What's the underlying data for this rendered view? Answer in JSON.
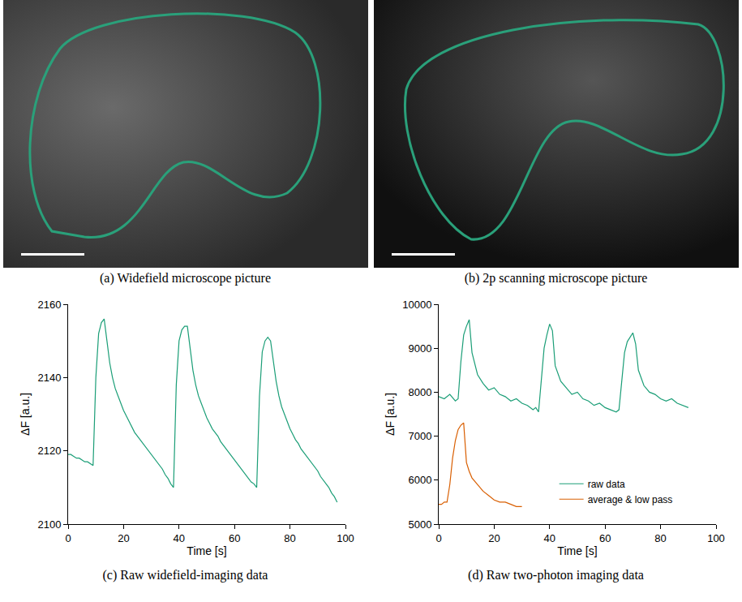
{
  "images": [
    {
      "caption": "(a) Widefield microscope picture"
    },
    {
      "caption": "(b) 2p scanning microscope picture"
    }
  ],
  "chart_data": [
    {
      "type": "line",
      "caption": "(c) Raw widefield-imaging data",
      "x_label": "Time [s]",
      "y_label": "ΔF [a.u.]",
      "xlim": [
        0,
        100
      ],
      "xticks": [
        0,
        20,
        40,
        60,
        80,
        100
      ],
      "ylim": [
        2100,
        2160
      ],
      "yticks": [
        2100,
        2120,
        2140,
        2160
      ],
      "grid": false,
      "series": [
        {
          "color": "#1b9e77",
          "x": [
            0,
            1,
            2,
            3,
            4,
            5,
            6,
            7,
            8,
            9,
            10,
            11,
            12,
            13,
            14,
            15,
            16,
            17,
            18,
            19,
            20,
            21,
            22,
            23,
            24,
            25,
            26,
            27,
            28,
            29,
            30,
            31,
            32,
            33,
            34,
            35,
            36,
            37,
            38,
            39,
            40,
            41,
            42,
            43,
            44,
            45,
            46,
            47,
            48,
            49,
            50,
            51,
            52,
            53,
            54,
            55,
            56,
            57,
            58,
            59,
            60,
            61,
            62,
            63,
            64,
            65,
            66,
            67,
            68,
            69,
            70,
            71,
            72,
            73,
            74,
            75,
            76,
            77,
            78,
            79,
            80,
            81,
            82,
            83,
            84,
            85,
            86,
            87,
            88,
            89,
            90,
            91,
            92,
            93,
            94,
            95,
            96,
            97
          ],
          "values": [
            2119,
            2119,
            2118.5,
            2118,
            2118,
            2117.5,
            2117,
            2117,
            2116.5,
            2116,
            2140,
            2152,
            2155,
            2156,
            2150,
            2144,
            2140,
            2137,
            2135,
            2133,
            2131,
            2129.5,
            2128,
            2126.5,
            2125,
            2124,
            2123,
            2122,
            2121,
            2120,
            2119,
            2118,
            2117,
            2116,
            2115,
            2113.5,
            2112.5,
            2111,
            2110,
            2138,
            2150,
            2153,
            2154,
            2154,
            2148,
            2142,
            2138,
            2135,
            2133,
            2131,
            2129,
            2127.5,
            2126,
            2125,
            2124,
            2122.5,
            2121.5,
            2120.5,
            2119.5,
            2118.5,
            2117.5,
            2116.5,
            2115.5,
            2114.5,
            2113.5,
            2112.5,
            2111.5,
            2111,
            2110,
            2135,
            2147,
            2150,
            2151,
            2150,
            2144,
            2139,
            2135,
            2132,
            2130,
            2128,
            2126,
            2124.5,
            2123,
            2122,
            2120.5,
            2119.5,
            2118.5,
            2117.5,
            2116.5,
            2115.5,
            2114.5,
            2113,
            2112,
            2111,
            2110,
            2108.5,
            2107.5,
            2106
          ]
        }
      ]
    },
    {
      "type": "line",
      "caption": "(d) Raw two-photon imaging data",
      "x_label": "Time [s]",
      "y_label": "ΔF [a.u.]",
      "xlim": [
        0,
        100
      ],
      "xticks": [
        0,
        20,
        40,
        60,
        80,
        100
      ],
      "ylim": [
        5000,
        10000
      ],
      "yticks": [
        5000,
        6000,
        7000,
        8000,
        9000,
        10000
      ],
      "grid": false,
      "legend": "lower right",
      "series": [
        {
          "name": "raw data",
          "color": "#1b9e77",
          "x": [
            0,
            2,
            4,
            6,
            7,
            8,
            9,
            10,
            11,
            12,
            14,
            16,
            18,
            20,
            22,
            24,
            26,
            28,
            30,
            32,
            34,
            35,
            36,
            37,
            38,
            39,
            40,
            41,
            42,
            44,
            46,
            48,
            50,
            52,
            54,
            56,
            58,
            60,
            62,
            64,
            65,
            66,
            67,
            68,
            69,
            70,
            71,
            72,
            74,
            76,
            78,
            80,
            82,
            84,
            86,
            88,
            90
          ],
          "values": [
            7900,
            7850,
            7950,
            7800,
            7850,
            8700,
            9300,
            9500,
            9650,
            8900,
            8400,
            8200,
            8050,
            8100,
            7950,
            7900,
            7800,
            7850,
            7750,
            7700,
            7600,
            7650,
            7550,
            8300,
            9000,
            9300,
            9550,
            9400,
            8600,
            8250,
            8100,
            7950,
            8000,
            7850,
            7800,
            7700,
            7750,
            7650,
            7600,
            7550,
            7600,
            8200,
            8900,
            9150,
            9250,
            9350,
            9100,
            8500,
            8150,
            8000,
            7950,
            7850,
            7800,
            7850,
            7750,
            7700,
            7650
          ]
        },
        {
          "name": "average & low pass",
          "color": "#d95f02",
          "x": [
            0,
            1,
            2,
            3,
            4,
            5,
            6,
            7,
            8,
            9,
            10,
            11,
            12,
            14,
            16,
            18,
            20,
            22,
            24,
            26,
            28,
            30
          ],
          "values": [
            5450,
            5450,
            5500,
            5500,
            5900,
            6500,
            6900,
            7150,
            7250,
            7300,
            6400,
            6200,
            6050,
            5900,
            5750,
            5650,
            5550,
            5500,
            5500,
            5450,
            5400,
            5400
          ]
        }
      ]
    }
  ]
}
